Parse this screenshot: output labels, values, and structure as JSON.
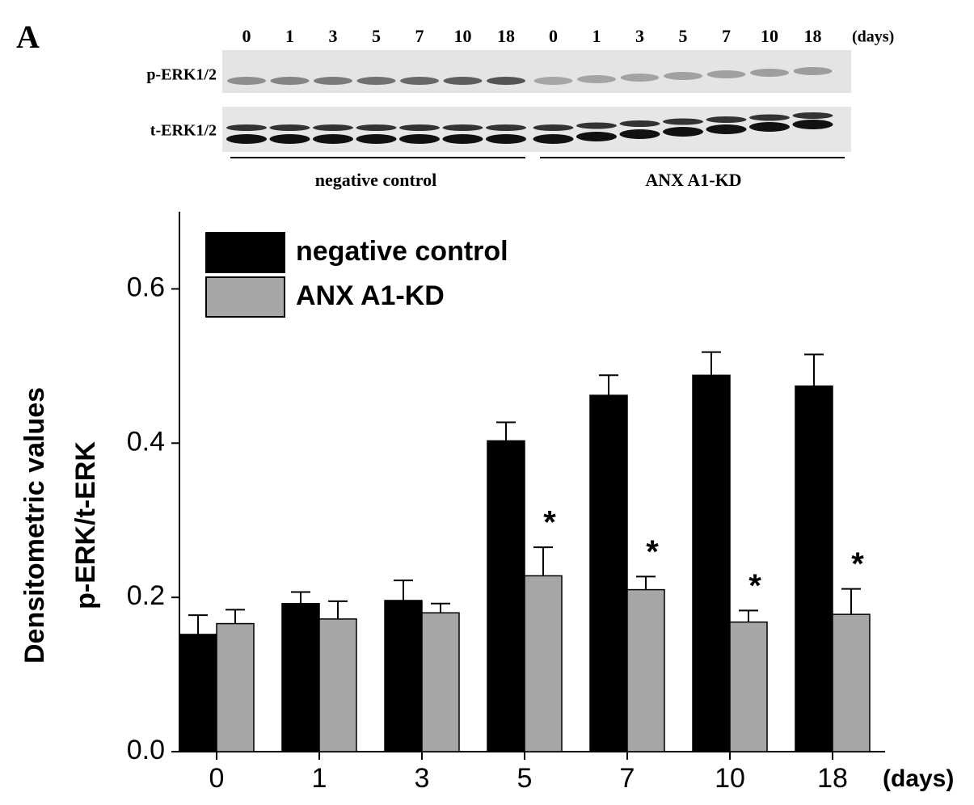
{
  "blot": {
    "panel_label": "A",
    "lanes": [
      "0",
      "1",
      "3",
      "5",
      "7",
      "10",
      "18",
      "0",
      "1",
      "3",
      "5",
      "7",
      "10",
      "18"
    ],
    "unit": "(days)",
    "rows": [
      "p-ERK1/2",
      "t-ERK1/2"
    ],
    "groups": [
      "negative control",
      "ANX A1-KD"
    ]
  },
  "chart_data": {
    "type": "bar",
    "y_label": [
      "Densitometric values",
      "p-ERK/t-ERK"
    ],
    "x_label": "(days)",
    "categories": [
      "0",
      "1",
      "3",
      "5",
      "7",
      "10",
      "18"
    ],
    "series": [
      {
        "name": "negative control",
        "color": "#000000",
        "values": [
          0.152,
          0.192,
          0.196,
          0.403,
          0.462,
          0.488,
          0.474
        ],
        "errors": [
          0.025,
          0.015,
          0.026,
          0.024,
          0.026,
          0.03,
          0.041
        ]
      },
      {
        "name": "ANX A1-KD",
        "color": "#a6a6a6",
        "values": [
          0.166,
          0.172,
          0.18,
          0.228,
          0.21,
          0.168,
          0.178
        ],
        "errors": [
          0.018,
          0.023,
          0.012,
          0.037,
          0.017,
          0.015,
          0.033
        ]
      }
    ],
    "significance": [
      null,
      null,
      null,
      "*",
      "*",
      "*",
      "*"
    ],
    "ylim": [
      0,
      0.7
    ],
    "yticks": [
      {
        "value": 0,
        "label": "0.0"
      },
      0.2,
      0.4,
      0.6
    ],
    "legend": "upper left"
  }
}
